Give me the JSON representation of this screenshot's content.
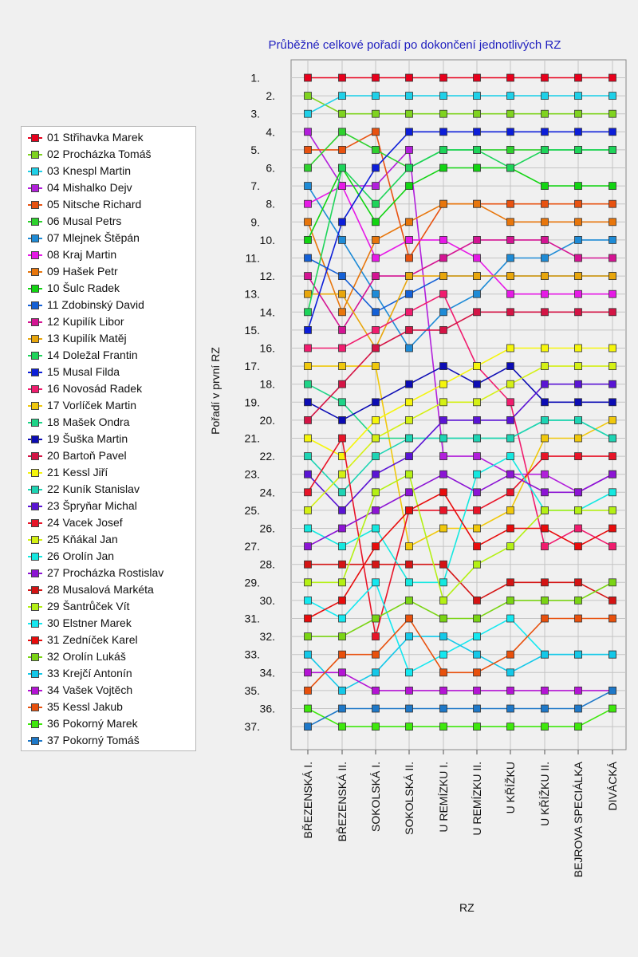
{
  "chart_data": {
    "type": "line",
    "title": "Průběžné celkové pořadí po dokončení jednotlivých RZ",
    "xlabel": "RZ",
    "ylabel": "Pořadí v první RZ",
    "ylim": [
      1,
      37
    ],
    "y_inverted": true,
    "y_tick_labels": [
      "1.",
      "2.",
      "3.",
      "4.",
      "5.",
      "6.",
      "7.",
      "8.",
      "9.",
      "10.",
      "11.",
      "12.",
      "13.",
      "14.",
      "15.",
      "16.",
      "17.",
      "18.",
      "19.",
      "20.",
      "21.",
      "22.",
      "23.",
      "24.",
      "25.",
      "26.",
      "27.",
      "28.",
      "29.",
      "30.",
      "31.",
      "32.",
      "33.",
      "34.",
      "35.",
      "36.",
      "37."
    ],
    "categories": [
      "BŘEZENSKÁ I.",
      "BŘEZENSKÁ II.",
      "SOKOLSKÁ I.",
      "SOKOLSKÁ II.",
      "U REMÍZKU I.",
      "U REMÍZKU II.",
      "U KŘÍŽKU",
      "U KŘÍŽKU II.",
      "BEJROVA SPECIÁLKA",
      "DIVÁCKÁ"
    ],
    "grid": true,
    "legend_position": "left",
    "series": [
      {
        "name": "01 Střihavka Marek",
        "color": "#e8001c",
        "values": [
          1,
          1,
          1,
          1,
          1,
          1,
          1,
          1,
          1,
          1
        ]
      },
      {
        "name": "02 Procházka Tomáš",
        "color": "#7fd320",
        "values": [
          2,
          3,
          3,
          3,
          3,
          3,
          3,
          3,
          3,
          3
        ]
      },
      {
        "name": "03 Knespl Martin",
        "color": "#1fd0e8",
        "values": [
          3,
          2,
          2,
          2,
          2,
          2,
          2,
          2,
          2,
          2
        ]
      },
      {
        "name": "04 Mishalko Dejv",
        "color": "#b21fdb",
        "values": [
          4,
          7,
          7,
          5,
          22,
          22,
          23,
          23,
          24,
          23
        ]
      },
      {
        "name": "05 Nitsche Richard",
        "color": "#e85210",
        "values": [
          5,
          5,
          4,
          11,
          8,
          8,
          8,
          8,
          8,
          8
        ]
      },
      {
        "name": "06 Musal Petrs",
        "color": "#2ed12e",
        "values": [
          6,
          4,
          5,
          6,
          5,
          5,
          5,
          5,
          5,
          5
        ]
      },
      {
        "name": "07 Mlejnek Štěpán",
        "color": "#1e8bd6",
        "values": [
          7,
          10,
          13,
          16,
          14,
          13,
          11,
          11,
          10,
          10
        ]
      },
      {
        "name": "08 Kraj Martin",
        "color": "#e619e6",
        "values": [
          8,
          7,
          11,
          10,
          10,
          11,
          13,
          13,
          13,
          13
        ]
      },
      {
        "name": "09 Hašek Petr",
        "color": "#e8760c",
        "values": [
          9,
          14,
          10,
          9,
          8,
          8,
          9,
          9,
          9,
          9
        ]
      },
      {
        "name": "10 Šulc Radek",
        "color": "#12d412",
        "values": [
          10,
          6,
          9,
          7,
          6,
          6,
          6,
          7,
          7,
          7
        ]
      },
      {
        "name": "11 Zdobinský David",
        "color": "#1460d6",
        "values": [
          11,
          12,
          14,
          13,
          12,
          12,
          12,
          12,
          12,
          12
        ]
      },
      {
        "name": "12 Kupilík Libor",
        "color": "#d41493",
        "values": [
          12,
          15,
          12,
          12,
          11,
          10,
          10,
          10,
          11,
          11
        ]
      },
      {
        "name": "13 Kupilík Matěj",
        "color": "#e8a60c",
        "values": [
          13,
          13,
          16,
          12,
          12,
          12,
          12,
          12,
          12,
          12
        ]
      },
      {
        "name": "14 Doležal Frantin",
        "color": "#1ed45a",
        "values": [
          14,
          6,
          8,
          6,
          5,
          5,
          6,
          5,
          5,
          5
        ]
      },
      {
        "name": "15 Musal Filda",
        "color": "#0c1ed9",
        "values": [
          15,
          9,
          6,
          4,
          4,
          4,
          4,
          4,
          4,
          4
        ]
      },
      {
        "name": "16 Novosád Radek",
        "color": "#f01c6e",
        "values": [
          16,
          16,
          15,
          14,
          13,
          17,
          19,
          27,
          26,
          27
        ]
      },
      {
        "name": "17 Vorlíček Martin",
        "color": "#f0c80c",
        "values": [
          17,
          17,
          17,
          27,
          26,
          26,
          25,
          21,
          21,
          20
        ]
      },
      {
        "name": "18 Mašek Ondra",
        "color": "#1ed487",
        "values": [
          18,
          19,
          21,
          21,
          21,
          21,
          21,
          20,
          20,
          21
        ]
      },
      {
        "name": "19 Šuška Martin",
        "color": "#0c0cb4",
        "values": [
          19,
          20,
          19,
          18,
          17,
          18,
          17,
          19,
          19,
          19
        ]
      },
      {
        "name": "20 Bartoň Pavel",
        "color": "#d41445",
        "values": [
          20,
          18,
          16,
          15,
          15,
          14,
          14,
          14,
          14,
          14
        ]
      },
      {
        "name": "21 Kessl Jiří",
        "color": "#f5f50c",
        "values": [
          21,
          22,
          20,
          19,
          18,
          17,
          16,
          16,
          16,
          16
        ]
      },
      {
        "name": "22 Kuník Stanislav",
        "color": "#1ed4b4",
        "values": [
          22,
          24,
          22,
          21,
          21,
          21,
          21,
          20,
          20,
          21
        ]
      },
      {
        "name": "23 Špryňar Michal",
        "color": "#5a14d4",
        "values": [
          23,
          25,
          23,
          22,
          20,
          20,
          20,
          18,
          18,
          18
        ]
      },
      {
        "name": "24 Vacek Josef",
        "color": "#e81428",
        "values": [
          24,
          21,
          32,
          25,
          25,
          25,
          24,
          22,
          22,
          22
        ]
      },
      {
        "name": "25 Kňákal Jan",
        "color": "#d4f014",
        "values": [
          25,
          23,
          21,
          20,
          19,
          19,
          18,
          17,
          17,
          17
        ]
      },
      {
        "name": "26 Orolín Jan",
        "color": "#14e8e0",
        "values": [
          26,
          27,
          26,
          29,
          29,
          23,
          22,
          25,
          25,
          24
        ]
      },
      {
        "name": "27 Procházka Rostislav",
        "color": "#8c14d4",
        "values": [
          27,
          26,
          25,
          24,
          23,
          24,
          23,
          24,
          24,
          23
        ]
      },
      {
        "name": "28 Musalová Markéta",
        "color": "#d41414",
        "values": [
          28,
          28,
          28,
          28,
          28,
          30,
          29,
          29,
          29,
          30
        ]
      },
      {
        "name": "29 Šantrůček Vít",
        "color": "#b4f014",
        "values": [
          29,
          29,
          24,
          23,
          30,
          28,
          27,
          25,
          25,
          25
        ]
      },
      {
        "name": "30 Elstner Marek",
        "color": "#14e8f0",
        "values": [
          30,
          31,
          29,
          34,
          33,
          32,
          31,
          33,
          33,
          33
        ]
      },
      {
        "name": "31 Zedníček Karel",
        "color": "#e80c0c",
        "values": [
          31,
          30,
          27,
          25,
          24,
          27,
          26,
          26,
          27,
          26
        ]
      },
      {
        "name": "32 Orolín Lukáš",
        "color": "#7ad414",
        "values": [
          32,
          32,
          31,
          30,
          31,
          31,
          30,
          30,
          30,
          29
        ]
      },
      {
        "name": "33 Krejčí Antonín",
        "color": "#14c8e8",
        "values": [
          33,
          35,
          34,
          32,
          32,
          33,
          34,
          33,
          33,
          33
        ]
      },
      {
        "name": "34 Vašek Vojtěch",
        "color": "#b414d4",
        "values": [
          34,
          34,
          35,
          35,
          35,
          35,
          35,
          35,
          35,
          35
        ]
      },
      {
        "name": "35 Kessl Jakub",
        "color": "#e8500c",
        "values": [
          35,
          33,
          33,
          31,
          34,
          34,
          33,
          31,
          31,
          31
        ]
      },
      {
        "name": "36 Pokorný Marek",
        "color": "#3ee80c",
        "values": [
          36,
          37,
          37,
          37,
          37,
          37,
          37,
          37,
          37,
          36
        ]
      },
      {
        "name": "37 Pokorný Tomáš",
        "color": "#1e78c8",
        "values": [
          37,
          36,
          36,
          36,
          36,
          36,
          36,
          36,
          36,
          35
        ]
      }
    ]
  }
}
